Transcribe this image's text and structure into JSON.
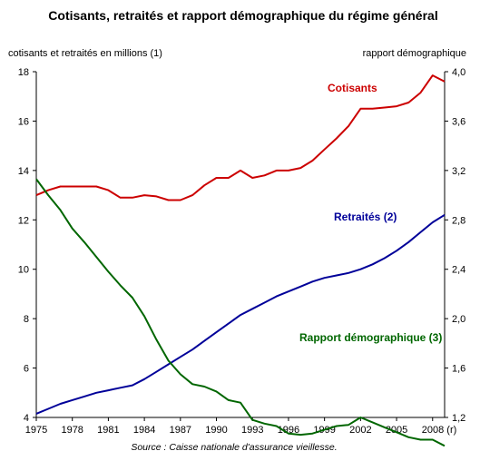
{
  "chart_data": {
    "type": "line",
    "title": "Cotisants, retraités et rapport démographique du régime général",
    "ylabel": "cotisants et retraités en millions (1)",
    "y2label": "rapport démographique",
    "source": "Source : Caisse nationale d'assurance vieillesse.",
    "ylim": [
      4,
      18
    ],
    "y2lim": [
      1.2,
      4.0
    ],
    "xlim": [
      1975,
      2009
    ],
    "x_ticks": [
      "1975",
      "1978",
      "1981",
      "1984",
      "1987",
      "1990",
      "1993",
      "1996",
      "1999",
      "2002",
      "2005",
      "2008 (r)"
    ],
    "x_tick_values": [
      1975,
      1978,
      1981,
      1984,
      1987,
      1990,
      1993,
      1996,
      1999,
      2002,
      2005,
      2008
    ],
    "y_ticks": [
      "4",
      "6",
      "8",
      "10",
      "12",
      "14",
      "16",
      "18"
    ],
    "y_tick_values": [
      4,
      6,
      8,
      10,
      12,
      14,
      16,
      18
    ],
    "y2_ticks": [
      "1,2",
      "1,6",
      "2,0",
      "2,4",
      "2,8",
      "3,2",
      "3,6",
      "4,0"
    ],
    "y2_tick_values": [
      1.2,
      1.6,
      2.0,
      2.4,
      2.8,
      3.2,
      3.6,
      4.0
    ],
    "grid": false,
    "series": [
      {
        "name": "Cotisants",
        "axis": "left",
        "color": "#cc0000",
        "x": [
          1975,
          1976,
          1977,
          1978,
          1979,
          1980,
          1981,
          1982,
          1983,
          1984,
          1985,
          1986,
          1987,
          1988,
          1989,
          1990,
          1991,
          1992,
          1993,
          1994,
          1995,
          1996,
          1997,
          1998,
          1999,
          2000,
          2001,
          2002,
          2003,
          2004,
          2005,
          2006,
          2007,
          2008,
          2009
        ],
        "values": [
          13.0,
          13.2,
          13.35,
          13.35,
          13.35,
          13.35,
          13.2,
          12.9,
          12.9,
          13.0,
          12.95,
          12.8,
          12.8,
          13.0,
          13.4,
          13.7,
          13.7,
          14.0,
          13.7,
          13.8,
          14.0,
          14.0,
          14.1,
          14.4,
          14.85,
          15.3,
          15.8,
          16.5,
          16.5,
          16.55,
          16.6,
          16.75,
          17.15,
          17.85,
          17.6
        ]
      },
      {
        "name": "Retraités (2)",
        "axis": "left",
        "color": "#000099",
        "x": [
          1975,
          1976,
          1977,
          1978,
          1979,
          1980,
          1981,
          1982,
          1983,
          1984,
          1985,
          1986,
          1987,
          1988,
          1989,
          1990,
          1991,
          1992,
          1993,
          1994,
          1995,
          1996,
          1997,
          1998,
          1999,
          2000,
          2001,
          2002,
          2003,
          2004,
          2005,
          2006,
          2007,
          2008,
          2009
        ],
        "values": [
          4.15,
          4.35,
          4.55,
          4.7,
          4.85,
          5.0,
          5.1,
          5.2,
          5.3,
          5.55,
          5.85,
          6.15,
          6.45,
          6.75,
          7.1,
          7.45,
          7.8,
          8.15,
          8.4,
          8.65,
          8.9,
          9.1,
          9.3,
          9.5,
          9.65,
          9.75,
          9.85,
          10.0,
          10.2,
          10.45,
          10.75,
          11.1,
          11.5,
          11.9,
          12.2
        ]
      },
      {
        "name": "Rapport démographique (3)",
        "axis": "right",
        "color": "#006600",
        "x": [
          1975,
          1976,
          1977,
          1978,
          1979,
          1980,
          1981,
          1982,
          1983,
          1984,
          1985,
          1986,
          1987,
          1988,
          1989,
          1990,
          1991,
          1992,
          1993,
          1994,
          1995,
          1996,
          1997,
          1998,
          1999,
          2000,
          2001,
          2002,
          2003,
          2004,
          2005,
          2006,
          2007,
          2008,
          2009
        ],
        "values": [
          3.13,
          3.0,
          2.88,
          2.73,
          2.62,
          2.5,
          2.38,
          2.27,
          2.17,
          2.02,
          1.83,
          1.66,
          1.55,
          1.47,
          1.45,
          1.41,
          1.34,
          1.32,
          1.18,
          1.15,
          1.13,
          1.07,
          1.06,
          1.07,
          1.1,
          1.13,
          1.14,
          1.2,
          1.16,
          1.12,
          1.08,
          1.04,
          1.02,
          1.02,
          0.97
        ]
      }
    ],
    "series_label_positions": "Cotisants near top-right above line; Retraités (2) above blue line near 2000; Rapport démographique (3) right of green line near 1999"
  }
}
